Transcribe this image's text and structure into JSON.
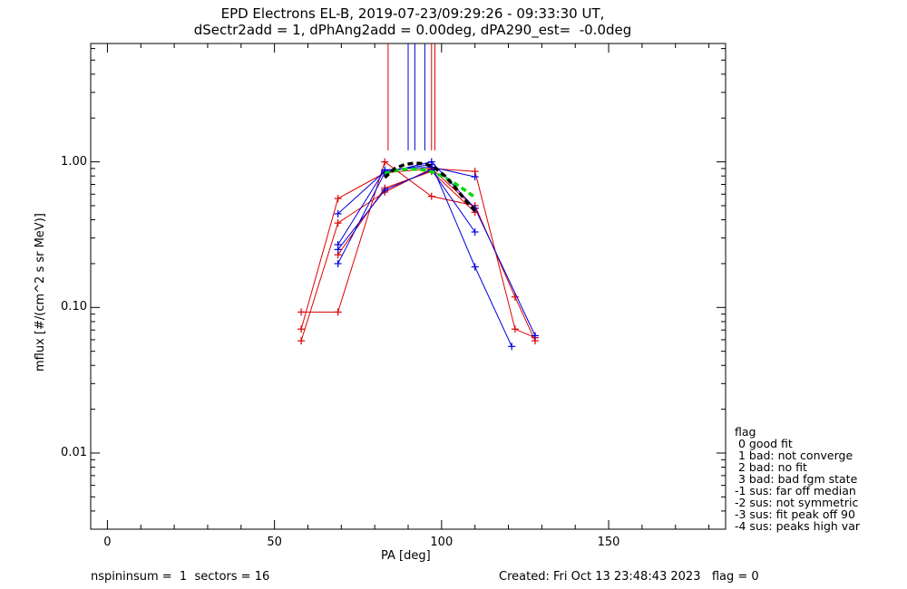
{
  "title_line1": "EPD Electrons EL-B, 2019-07-23/09:29:26 - 09:33:30 UT,",
  "title_line2": "dSectr2add = 1, dPhAng2add = 0.00deg, dPA290_est=  -0.0deg",
  "footer": {
    "left": "nspininsum =  1  sectors = 16",
    "right": "Created: Fri Oct 13 23:48:43 2023   flag = 0"
  },
  "legend": {
    "title": "flag",
    "items": [
      " 0 good fit",
      " 1 bad: not converge",
      " 2 bad: no fit",
      " 3 bad: bad fgm state",
      "-1 sus: far off median",
      "-2 sus: not symmetric",
      "-3 sus: fit peak off 90",
      "-4 sus: peaks high var"
    ]
  },
  "colors": {
    "red": "#dd0000",
    "blue": "#0000dd",
    "green": "#00dd00",
    "black": "#000000"
  },
  "chart_data": {
    "type": "line",
    "title": "EPD Electrons EL-B, 2019-07-23/09:29:26 - 09:33:30 UT,",
    "xlabel": "PA [deg]",
    "ylabel": "mflux [#/(cm^2 s sr MeV)]",
    "xlim": [
      -5,
      185
    ],
    "ylim": [
      0.003,
      6.5
    ],
    "ylog": true,
    "x_ticks": [
      0,
      50,
      100,
      150
    ],
    "y_ticks": [
      0.01,
      0.1,
      1.0
    ],
    "y_tick_labels": [
      "0.01",
      "0.10",
      "1.00"
    ],
    "series": [
      {
        "color": "red",
        "x": [
          58,
          69,
          83,
          97,
          110,
          122,
          128
        ],
        "y": [
          0.093,
          0.093,
          1.0,
          0.58,
          0.5,
          0.118,
          0.059
        ]
      },
      {
        "color": "red",
        "x": [
          58,
          69,
          83,
          97,
          110,
          122,
          128
        ],
        "y": [
          0.059,
          0.38,
          0.62,
          0.9,
          0.86,
          0.071,
          0.062
        ]
      },
      {
        "color": "red",
        "x": [
          58,
          69,
          83,
          97,
          110
        ],
        "y": [
          0.071,
          0.56,
          0.84,
          0.9,
          0.48
        ]
      },
      {
        "color": "red",
        "x": [
          69,
          83,
          97,
          110
        ],
        "y": [
          0.23,
          0.66,
          0.86,
          0.45
        ]
      },
      {
        "color": "blue",
        "x": [
          69,
          83,
          97,
          110,
          121
        ],
        "y": [
          0.44,
          0.86,
          0.96,
          0.19,
          0.054
        ]
      },
      {
        "color": "blue",
        "x": [
          69,
          83,
          97,
          110
        ],
        "y": [
          0.27,
          0.88,
          0.92,
          0.79
        ]
      },
      {
        "color": "blue",
        "x": [
          69,
          83,
          97,
          110
        ],
        "y": [
          0.25,
          0.64,
          0.88,
          0.33
        ]
      },
      {
        "color": "blue",
        "x": [
          69,
          83,
          97,
          110,
          128
        ],
        "y": [
          0.2,
          0.84,
          1.0,
          0.48,
          0.064
        ]
      },
      {
        "color": "green",
        "style": "dashed",
        "x": [
          83,
          86,
          89,
          92,
          95,
          98,
          101,
          104,
          107,
          110
        ],
        "y": [
          0.83,
          0.87,
          0.89,
          0.89,
          0.88,
          0.84,
          0.78,
          0.71,
          0.64,
          0.57
        ]
      },
      {
        "color": "black",
        "style": "dashed",
        "x": [
          83,
          86,
          89,
          92,
          95,
          98,
          101,
          104,
          107,
          110
        ],
        "y": [
          0.78,
          0.9,
          0.96,
          0.98,
          0.97,
          0.91,
          0.8,
          0.67,
          0.55,
          0.46
        ]
      }
    ],
    "vertical_lines": [
      {
        "color": "red",
        "x": 84,
        "ymin": 1.2
      },
      {
        "color": "blue",
        "x": 90,
        "ymin": 1.2
      },
      {
        "color": "blue",
        "x": 92,
        "ymin": 1.2
      },
      {
        "color": "blue",
        "x": 95,
        "ymin": 1.2
      },
      {
        "color": "red",
        "x": 97,
        "ymin": 1.2
      },
      {
        "color": "red",
        "x": 98,
        "ymin": 1.2
      }
    ]
  }
}
